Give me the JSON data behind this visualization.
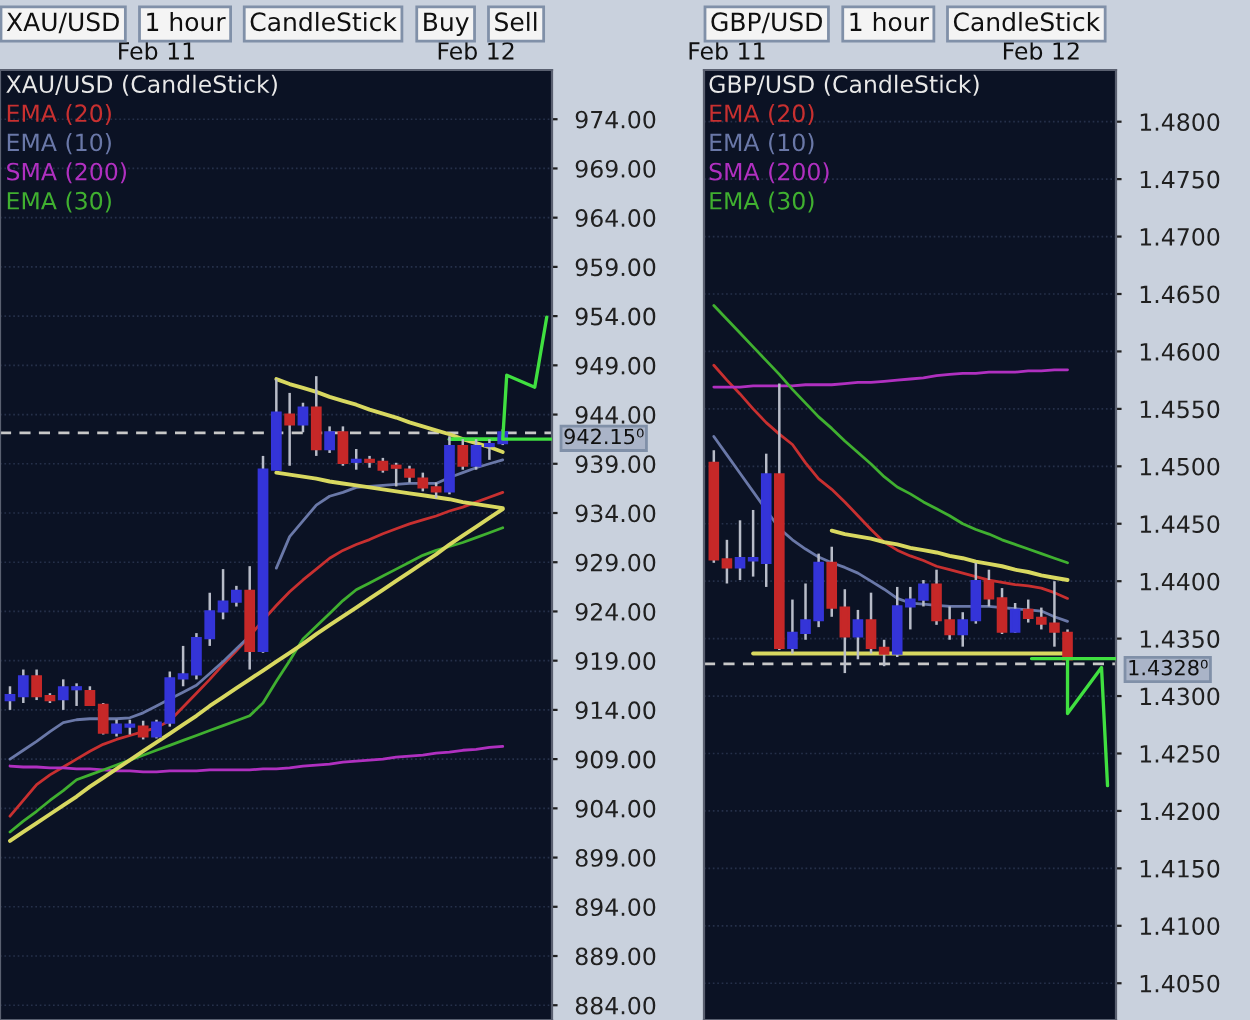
{
  "chart_data": [
    {
      "type": "candlestick",
      "title": "XAU/USD (CandleStick)",
      "annotations": [
        "XAU/USD",
        "1 hour",
        "CandleStick",
        "Buy",
        "Sell"
      ],
      "grid": true,
      "categories": [
        null,
        null,
        null,
        null,
        null,
        null,
        null,
        null,
        null,
        null,
        null,
        "Feb 11",
        null,
        null,
        null,
        null,
        null,
        null,
        null,
        null,
        null,
        null,
        null,
        null,
        null,
        null,
        null,
        null,
        null,
        null,
        null,
        null,
        null,
        null,
        null,
        "Feb 12",
        null,
        null
      ],
      "ohlc": [
        [
          915.0,
          916.4,
          914.0,
          915.5
        ],
        [
          915.4,
          918.1,
          914.7,
          917.4
        ],
        [
          917.4,
          918.1,
          915.0,
          915.4
        ],
        [
          915.4,
          915.7,
          914.7,
          915.0
        ],
        [
          915.1,
          917.1,
          914.0,
          916.3
        ],
        [
          916.1,
          916.7,
          914.4,
          916.3
        ],
        [
          915.9,
          916.4,
          914.4,
          914.5
        ],
        [
          914.5,
          914.7,
          911.5,
          911.7
        ],
        [
          911.7,
          913.0,
          911.3,
          912.5
        ],
        [
          912.3,
          913.0,
          911.5,
          912.5
        ],
        [
          912.3,
          912.9,
          911.0,
          911.3
        ],
        [
          911.3,
          913.0,
          911.1,
          912.7
        ],
        [
          912.7,
          917.9,
          912.3,
          917.2
        ],
        [
          917.2,
          920.5,
          916.4,
          917.6
        ],
        [
          917.6,
          921.8,
          917.1,
          921.3
        ],
        [
          921.3,
          925.9,
          920.5,
          924.0
        ],
        [
          924.0,
          928.3,
          923.2,
          925.0
        ],
        [
          925.0,
          926.6,
          924.5,
          926.1
        ],
        [
          926.1,
          928.6,
          918.1,
          920.0
        ],
        [
          920.0,
          939.8,
          919.8,
          938.4
        ],
        [
          938.4,
          947.6,
          938.4,
          944.2
        ],
        [
          944.0,
          946.2,
          938.8,
          943.0
        ],
        [
          943.0,
          945.2,
          942.2,
          944.7
        ],
        [
          944.7,
          947.9,
          939.8,
          940.5
        ],
        [
          940.5,
          942.8,
          940.1,
          942.2
        ],
        [
          942.2,
          942.8,
          938.8,
          939.1
        ],
        [
          939.2,
          940.5,
          938.4,
          939.4
        ],
        [
          939.4,
          939.8,
          938.6,
          939.2
        ],
        [
          939.2,
          939.6,
          938.1,
          938.4
        ],
        [
          938.8,
          939.1,
          936.7,
          938.6
        ],
        [
          938.4,
          938.8,
          937.1,
          937.7
        ],
        [
          937.5,
          938.1,
          936.2,
          936.6
        ],
        [
          936.6,
          937.1,
          935.5,
          936.2
        ],
        [
          936.2,
          941.8,
          935.9,
          940.8
        ],
        [
          940.8,
          941.5,
          938.4,
          938.8
        ],
        [
          938.8,
          941.5,
          938.4,
          940.8
        ],
        [
          940.8,
          941.5,
          939.4,
          941.0
        ],
        [
          941.1,
          942.5,
          940.9,
          942.2
        ]
      ],
      "colors": [
        "#3434d8",
        "#3434d8",
        "#c62828",
        "#c62828",
        "#3434d8",
        "#3434d8",
        "#c62828",
        "#c62828",
        "#3434d8",
        "#3434d8",
        "#c62828",
        "#3434d8",
        "#3434d8",
        "#3434d8",
        "#3434d8",
        "#3434d8",
        "#3434d8",
        "#3434d8",
        "#c62828",
        "#3434d8",
        "#3434d8",
        "#c62828",
        "#3434d8",
        "#c62828",
        "#3434d8",
        "#c62828",
        "#3434d8",
        "#c62828",
        "#c62828",
        "#c62828",
        "#c62828",
        "#c62828",
        "#c62828",
        "#3434d8",
        "#c62828",
        "#3434d8",
        "#3434d8",
        "#3434d8"
      ],
      "series": [
        {
          "name": "EMA (20)",
          "type": "line",
          "color": "#c83030",
          "values": [
            903.2,
            904.8,
            906.4,
            907.4,
            908.2,
            909.0,
            909.8,
            910.5,
            911.0,
            911.4,
            911.8,
            912.2,
            912.9,
            914.3,
            915.7,
            917.1,
            918.6,
            920.0,
            921.5,
            923.1,
            924.6,
            926.0,
            927.2,
            928.3,
            929.4,
            930.2,
            930.8,
            931.3,
            931.9,
            932.4,
            932.9,
            933.3,
            933.7,
            934.2,
            934.6,
            935.1,
            935.6,
            936.1
          ]
        },
        {
          "name": "EMA (10)",
          "type": "line",
          "color": "#6a78a8",
          "values": [
            909.0,
            909.9,
            910.8,
            911.8,
            912.7,
            913.0,
            913.1,
            913.1,
            913.1,
            913.2,
            913.7,
            914.4,
            915.1,
            915.8,
            916.5,
            917.7,
            918.9,
            920.2,
            921.5,
            null,
            928.4,
            931.6,
            933.2,
            934.8,
            935.7,
            936.1,
            936.6,
            936.7,
            936.8,
            936.9,
            937.0,
            937.0,
            937.0,
            937.6,
            938.1,
            938.6,
            939.0,
            939.4
          ]
        },
        {
          "name": "SMA (200)",
          "type": "line",
          "color": "#b030c0",
          "values": [
            908.3,
            908.2,
            908.2,
            908.1,
            908.1,
            908.0,
            908.0,
            907.9,
            907.8,
            907.8,
            907.7,
            907.7,
            907.8,
            907.8,
            907.8,
            907.9,
            907.9,
            907.9,
            907.9,
            908.0,
            908.0,
            908.1,
            908.3,
            908.4,
            908.5,
            908.7,
            908.8,
            908.9,
            909.0,
            909.2,
            909.3,
            909.4,
            909.6,
            909.7,
            909.9,
            910.0,
            910.2,
            910.3
          ]
        },
        {
          "name": "EMA (30)",
          "type": "line",
          "color": "#40b030",
          "values": [
            901.6,
            902.7,
            903.7,
            904.8,
            905.8,
            906.9,
            907.4,
            907.9,
            908.4,
            908.9,
            909.4,
            909.9,
            910.4,
            910.9,
            911.4,
            911.9,
            912.4,
            912.9,
            913.4,
            914.7,
            916.9,
            919.0,
            921.2,
            922.5,
            923.8,
            925.1,
            926.2,
            926.9,
            927.6,
            928.3,
            929.0,
            929.7,
            930.2,
            930.6,
            931.0,
            931.5,
            932.0,
            932.5
          ]
        },
        {
          "type": "line",
          "color": "#d8d860",
          "values": [
            null,
            null,
            null,
            null,
            null,
            null,
            null,
            null,
            null,
            null,
            null,
            null,
            null,
            null,
            null,
            null,
            null,
            null,
            null,
            null,
            947.6,
            947.1,
            946.7,
            946.3,
            945.8,
            945.4,
            945.0,
            944.5,
            944.1,
            943.7,
            943.2,
            942.8,
            942.4,
            942.0,
            941.5,
            941.1,
            940.7,
            940.2
          ]
        },
        {
          "type": "line",
          "color": "#d8d860",
          "values": [
            null,
            null,
            null,
            null,
            null,
            null,
            null,
            null,
            null,
            null,
            null,
            null,
            null,
            null,
            null,
            null,
            null,
            null,
            null,
            null,
            938.1,
            937.9,
            937.7,
            937.5,
            937.2,
            937.0,
            936.8,
            936.6,
            936.4,
            936.2,
            936.0,
            935.8,
            935.6,
            935.4,
            935.1,
            934.9,
            934.7,
            934.5
          ]
        },
        {
          "type": "line",
          "color": "#d8d860",
          "values": [
            900.7,
            901.6,
            902.5,
            903.4,
            904.3,
            905.2,
            906.2,
            907.1,
            908.0,
            908.9,
            909.8,
            910.7,
            911.6,
            912.5,
            913.4,
            914.4,
            915.3,
            916.2,
            917.1,
            918.0,
            918.9,
            919.8,
            920.7,
            921.7,
            922.6,
            923.5,
            924.4,
            925.3,
            926.2,
            927.1,
            928.0,
            928.9,
            929.8,
            930.8,
            931.7,
            932.6,
            933.5,
            934.4
          ]
        },
        {
          "type": "line",
          "color": "#40e040",
          "values": [
            null,
            null,
            null,
            null,
            null,
            null,
            null,
            null,
            null,
            null,
            null,
            null,
            null,
            null,
            null,
            null,
            null,
            null,
            null,
            null,
            null,
            null,
            null,
            null,
            null,
            null,
            null,
            null,
            null,
            null,
            null,
            null,
            null,
            941.5,
            941.5,
            941.5,
            941.5,
            941.5
          ]
        }
      ],
      "ref_lines": [
        {
          "axis": "y",
          "value": 942.15,
          "label": "942.15⁰",
          "color": "#c8c8c8",
          "line_style": "dashed"
        }
      ],
      "ylim": [
        882.5,
        979
      ],
      "yticks": [
        {
          "value": 884,
          "label": "884.00"
        },
        {
          "value": 889,
          "label": "889.00"
        },
        {
          "value": 894,
          "label": "894.00"
        },
        {
          "value": 899,
          "label": "899.00"
        },
        {
          "value": 904,
          "label": "904.00"
        },
        {
          "value": 909,
          "label": "909.00"
        },
        {
          "value": 914,
          "label": "914.00"
        },
        {
          "value": 919,
          "label": "919.00"
        },
        {
          "value": 924,
          "label": "924.00"
        },
        {
          "value": 929,
          "label": "929.00"
        },
        {
          "value": 934,
          "label": "934.00"
        },
        {
          "value": 939,
          "label": "939.00"
        },
        {
          "value": 944,
          "label": "944.00"
        },
        {
          "value": 949,
          "label": "949.00"
        },
        {
          "value": 954,
          "label": "954.00"
        },
        {
          "value": 959,
          "label": "959.00"
        },
        {
          "value": 964,
          "label": "964.00"
        },
        {
          "value": 969,
          "label": "969.00"
        },
        {
          "value": 974,
          "label": "974.00"
        }
      ]
    },
    {
      "type": "candlestick",
      "title": "GBP/USD (CandleStick)",
      "annotations": [
        "GBP/USD",
        "1 hour",
        "CandleStick"
      ],
      "grid": true,
      "categories": [
        null,
        "Feb 11",
        null,
        null,
        null,
        null,
        null,
        null,
        null,
        null,
        null,
        null,
        null,
        null,
        null,
        null,
        null,
        null,
        null,
        null,
        null,
        null,
        null,
        null,
        null,
        "Feb 12",
        null,
        null
      ],
      "ohlc": [
        [
          1.4503,
          1.4514,
          1.4416,
          1.4419
        ],
        [
          1.4419,
          1.4436,
          1.4398,
          1.4412
        ],
        [
          1.4412,
          1.4453,
          1.4401,
          1.442
        ],
        [
          1.4418,
          1.4462,
          1.4404,
          1.442
        ],
        [
          1.4416,
          1.4511,
          1.4395,
          1.4493
        ],
        [
          1.4493,
          1.4572,
          1.434,
          1.4342
        ],
        [
          1.4342,
          1.4384,
          1.4337,
          1.4355
        ],
        [
          1.4355,
          1.4398,
          1.4349,
          1.4366
        ],
        [
          1.4366,
          1.4424,
          1.436,
          1.4416
        ],
        [
          1.4416,
          1.443,
          1.4369,
          1.4377
        ],
        [
          1.4377,
          1.4393,
          1.432,
          1.4352
        ],
        [
          1.4352,
          1.4375,
          1.4332,
          1.4366
        ],
        [
          1.4366,
          1.439,
          1.4337,
          1.4342
        ],
        [
          1.4342,
          1.4349,
          1.4326,
          1.4337
        ],
        [
          1.4337,
          1.4395,
          1.4334,
          1.4378
        ],
        [
          1.4378,
          1.4395,
          1.4358,
          1.4384
        ],
        [
          1.4384,
          1.4401,
          1.4378,
          1.4397
        ],
        [
          1.4397,
          1.441,
          1.4362,
          1.4366
        ],
        [
          1.4366,
          1.4378,
          1.4349,
          1.4354
        ],
        [
          1.4354,
          1.4373,
          1.4343,
          1.4366
        ],
        [
          1.4366,
          1.4416,
          1.4363,
          1.44
        ],
        [
          1.44,
          1.441,
          1.4378,
          1.4385
        ],
        [
          1.4385,
          1.4394,
          1.4354,
          1.4356
        ],
        [
          1.4356,
          1.4381,
          1.4355,
          1.4375
        ],
        [
          1.4375,
          1.4384,
          1.4364,
          1.4368
        ],
        [
          1.4368,
          1.4377,
          1.4358,
          1.4363
        ],
        [
          1.4363,
          1.44,
          1.4343,
          1.4356
        ],
        [
          1.4355,
          1.4358,
          1.4329,
          1.4332
        ]
      ],
      "colors": [
        "#c62828",
        "#c62828",
        "#3434d8",
        "#3434d8",
        "#3434d8",
        "#c62828",
        "#3434d8",
        "#3434d8",
        "#3434d8",
        "#c62828",
        "#c62828",
        "#3434d8",
        "#c62828",
        "#c62828",
        "#3434d8",
        "#3434d8",
        "#3434d8",
        "#c62828",
        "#c62828",
        "#3434d8",
        "#3434d8",
        "#c62828",
        "#c62828",
        "#3434d8",
        "#c62828",
        "#c62828",
        "#c62828",
        "#c62828"
      ],
      "series": [
        {
          "name": "EMA (20)",
          "type": "line",
          "color": "#c83030",
          "values": [
            1.4588,
            1.4575,
            1.4563,
            1.455,
            1.4538,
            1.4528,
            1.4519,
            1.4503,
            1.4489,
            1.448,
            1.4469,
            1.4457,
            1.4445,
            1.4434,
            1.4427,
            1.4422,
            1.4418,
            1.4413,
            1.441,
            1.4407,
            1.4404,
            1.4401,
            1.4399,
            1.4397,
            1.4396,
            1.4394,
            1.439,
            1.4385
          ]
        },
        {
          "name": "EMA (10)",
          "type": "line",
          "color": "#6a78a8",
          "values": [
            1.4526,
            1.451,
            1.4494,
            1.4478,
            1.4462,
            1.4446,
            1.4436,
            1.4428,
            1.4421,
            1.4416,
            1.4412,
            1.4407,
            1.44,
            1.4393,
            1.4385,
            1.4381,
            1.438,
            1.4379,
            1.4378,
            1.4378,
            1.4378,
            1.4378,
            1.4377,
            1.4376,
            1.4375,
            1.4374,
            1.4369,
            1.4365
          ]
        },
        {
          "name": "SMA (200)",
          "type": "line",
          "color": "#b030c0",
          "values": [
            1.4569,
            1.4569,
            1.4569,
            1.457,
            1.457,
            1.457,
            1.457,
            1.4571,
            1.4571,
            1.4571,
            1.4572,
            1.4573,
            1.4573,
            1.4574,
            1.4575,
            1.4576,
            1.4577,
            1.4579,
            1.458,
            1.4581,
            1.4581,
            1.4582,
            1.4582,
            1.4582,
            1.4583,
            1.4583,
            1.4584,
            1.4584
          ]
        },
        {
          "name": "EMA (30)",
          "type": "line",
          "color": "#40b030",
          "values": [
            1.464,
            1.4628,
            1.4616,
            1.4604,
            1.4592,
            1.458,
            1.4567,
            1.4555,
            1.4543,
            1.4533,
            1.4522,
            1.4512,
            1.4502,
            1.4491,
            1.4482,
            1.4476,
            1.4469,
            1.4463,
            1.4457,
            1.445,
            1.4445,
            1.4441,
            1.4436,
            1.4432,
            1.4428,
            1.4424,
            1.442,
            1.4416
          ]
        },
        {
          "type": "line",
          "color": "#d8d860",
          "values": [
            null,
            null,
            null,
            null,
            null,
            null,
            null,
            null,
            null,
            1.4444,
            1.4441,
            1.4439,
            1.4437,
            1.4434,
            1.4432,
            1.4429,
            1.4427,
            1.4425,
            1.4422,
            1.442,
            1.4417,
            1.4415,
            1.4413,
            1.441,
            1.4408,
            1.4405,
            1.4403,
            1.4401
          ]
        },
        {
          "type": "line",
          "color": "#d8d860",
          "values": [
            null,
            null,
            null,
            1.4337,
            1.4337,
            1.4337,
            1.4337,
            1.4337,
            1.4337,
            1.4337,
            1.4337,
            1.4337,
            1.4337,
            1.4337,
            1.4337,
            1.4337,
            1.4337,
            1.4337,
            1.4337,
            1.4337,
            1.4337,
            1.4337,
            1.4337,
            1.4337,
            1.4337,
            1.4337,
            1.4337,
            1.4337
          ]
        }
      ],
      "ref_lines": [
        {
          "axis": "y",
          "value": 1.4328,
          "label": "1.4328⁰",
          "color": "#c8c8c8",
          "line_style": "dashed"
        }
      ],
      "ylim": [
        1.4018,
        1.4845
      ],
      "yticks": [
        {
          "value": 1.405,
          "label": "1.4050"
        },
        {
          "value": 1.41,
          "label": "1.4100"
        },
        {
          "value": 1.415,
          "label": "1.4150"
        },
        {
          "value": 1.42,
          "label": "1.4200"
        },
        {
          "value": 1.425,
          "label": "1.4250"
        },
        {
          "value": 1.43,
          "label": "1.4300"
        },
        {
          "value": 1.435,
          "label": "1.4350"
        },
        {
          "value": 1.44,
          "label": "1.4400"
        },
        {
          "value": 1.445,
          "label": "1.4450"
        },
        {
          "value": 1.45,
          "label": "1.4500"
        },
        {
          "value": 1.455,
          "label": "1.4550"
        },
        {
          "value": 1.46,
          "label": "1.4600"
        },
        {
          "value": 1.465,
          "label": "1.4650"
        },
        {
          "value": 1.47,
          "label": "1.4700"
        },
        {
          "value": 1.475,
          "label": "1.4750"
        },
        {
          "value": 1.48,
          "label": "1.4800"
        }
      ]
    }
  ]
}
